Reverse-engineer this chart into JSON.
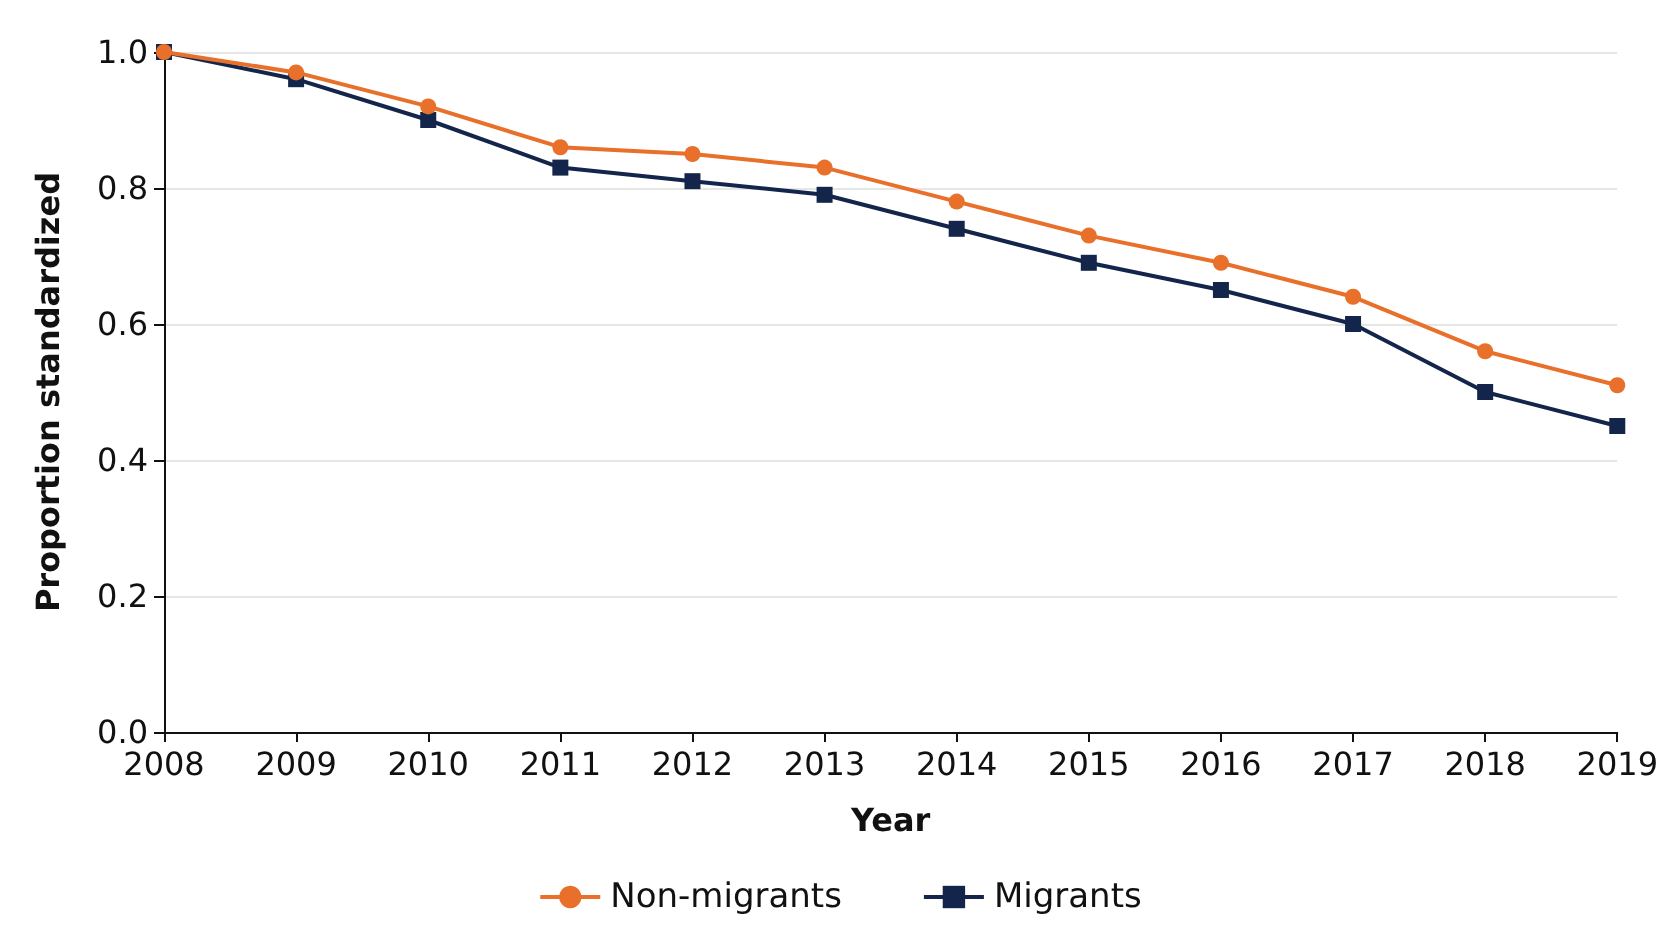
{
  "chart_data": {
    "type": "line",
    "xlabel": "Year",
    "ylabel": "Proportion standardized",
    "categories": [
      "2008",
      "2009",
      "2010",
      "2011",
      "2012",
      "2013",
      "2014",
      "2015",
      "2016",
      "2017",
      "2018",
      "2019"
    ],
    "series": [
      {
        "name": "Non-migrants",
        "color": "#e8702a",
        "marker": "circle",
        "values": [
          1.0,
          0.97,
          0.92,
          0.86,
          0.85,
          0.83,
          0.78,
          0.73,
          0.69,
          0.64,
          0.56,
          0.51
        ]
      },
      {
        "name": "Migrants",
        "color": "#13254a",
        "marker": "square",
        "values": [
          1.0,
          0.96,
          0.9,
          0.83,
          0.81,
          0.79,
          0.74,
          0.69,
          0.65,
          0.6,
          0.5,
          0.45
        ]
      }
    ],
    "ylim": [
      0,
      1
    ],
    "yticks": [
      {
        "value": 0,
        "label": "0.0"
      },
      0.2,
      0.4,
      0.6,
      0.8,
      {
        "value": 1,
        "label": "1.0"
      }
    ],
    "grid": "y",
    "legend": "bottom"
  }
}
